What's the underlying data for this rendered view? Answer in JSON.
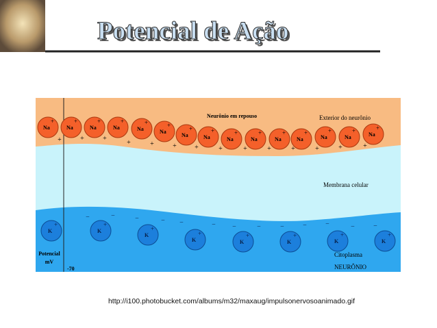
{
  "title": "Potencial de Ação",
  "diagram": {
    "state": "Neurônio em repouso",
    "exterior": "Exterior do neurônio",
    "membrane": "Membrana celular",
    "cytoplasm": "Citoplasma",
    "neuron": "NEURÔNIO",
    "potential_label": [
      "Potencial",
      "mV"
    ],
    "potential_value": "-70",
    "sodium_ions": [
      "Na",
      "Na",
      "Na",
      "Na",
      "Na",
      "Na",
      "Na",
      "Na",
      "Na",
      "Na",
      "Na",
      "Na",
      "Na",
      "Na",
      "Na"
    ],
    "potassium_ions": [
      "K",
      "K",
      "K",
      "K",
      "K",
      "K",
      "K",
      "K"
    ],
    "positive_sign": "+",
    "negative_sign": "−"
  },
  "caption": "http://i100.photobucket.com/albums/m32/maxaug/impulsonervosoanimado.gif"
}
